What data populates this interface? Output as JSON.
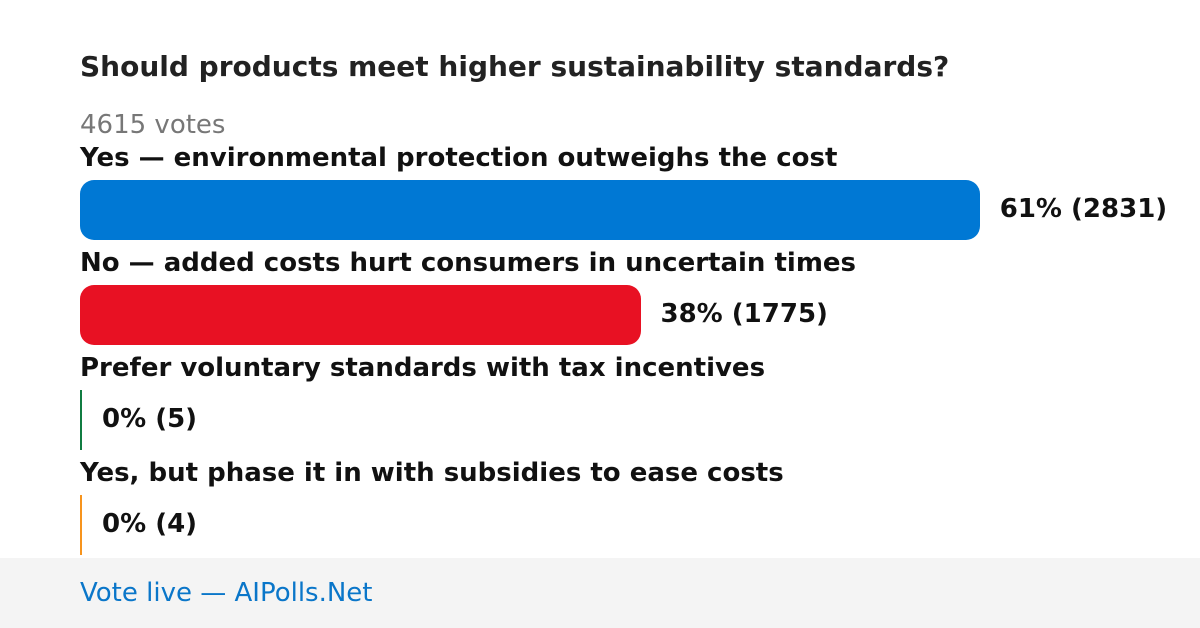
{
  "poll": {
    "title": "Should products meet higher sustainability standards?",
    "votes_label": "4615 votes",
    "options": [
      {
        "label": "Yes — environmental protection outweighs the cost",
        "percent": 61,
        "value_label": "61% (2831)",
        "color": "#0078d4"
      },
      {
        "label": "No — added costs hurt consumers in uncertain times",
        "percent": 38,
        "value_label": "38% (1775)",
        "color": "#e81123"
      },
      {
        "label": "Prefer voluntary standards with tax incentives",
        "percent": 0,
        "value_label": "0% (5)",
        "color": "#107c41"
      },
      {
        "label": "Yes, but phase it in with subsidies to ease costs",
        "percent": 0,
        "value_label": "0% (4)",
        "color": "#f7941d"
      }
    ]
  },
  "footer": {
    "link": "Vote live — AIPolls.Net"
  }
}
